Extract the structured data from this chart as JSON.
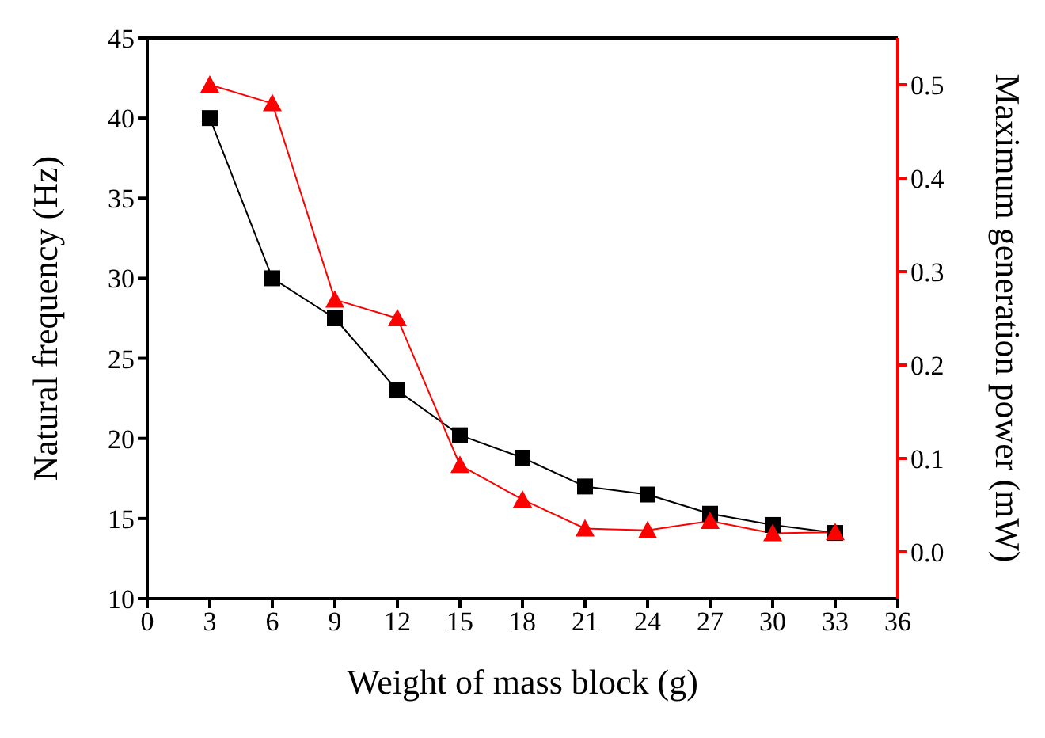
{
  "chart_data": {
    "type": "line",
    "xlabel": "Weight of mass block (g)",
    "ylabel": "Natural frequency (Hz)",
    "y2label": "Maximum generation power (mW)",
    "x": [
      3,
      6,
      9,
      12,
      15,
      18,
      21,
      24,
      27,
      30,
      33
    ],
    "xlim": [
      0,
      36
    ],
    "xticks": [
      0,
      3,
      6,
      9,
      12,
      15,
      18,
      21,
      24,
      27,
      30,
      33,
      36
    ],
    "ylim": [
      10,
      45
    ],
    "yticks": [
      10,
      15,
      20,
      25,
      30,
      35,
      40,
      45
    ],
    "y2lim": [
      -0.05,
      0.55
    ],
    "y2ticks": [
      {
        "value": 0,
        "label": "0.0"
      },
      0.1,
      0.2,
      0.3,
      0.4,
      0.5
    ],
    "grid": false,
    "line_style": "solid",
    "series": [
      {
        "color": "#000000",
        "marker": "square",
        "values": [
          40,
          30,
          27.5,
          23,
          20.2,
          18.8,
          17,
          16.5,
          15.3,
          14.6,
          14.1
        ]
      },
      {
        "color": "#ff0000",
        "marker": "triangle",
        "axis": "y2",
        "values": [
          0.5,
          0.48,
          0.27,
          0.25,
          0.093,
          0.056,
          0.025,
          0.023,
          0.033,
          0.02,
          0.021
        ]
      }
    ]
  }
}
